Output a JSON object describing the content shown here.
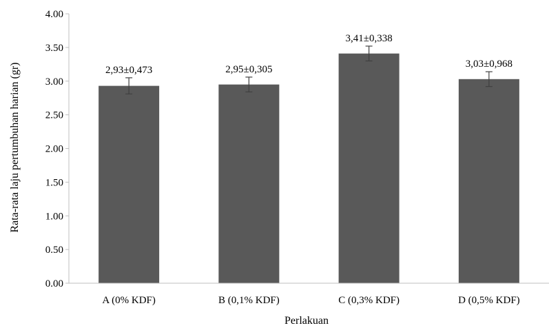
{
  "chart_data": {
    "type": "bar",
    "categories": [
      "A (0% KDF)",
      "B (0,1% KDF)",
      "C (0,3% KDF)",
      "D (0,5% KDF)"
    ],
    "values": [
      2.93,
      2.95,
      3.41,
      3.03
    ],
    "error": [
      0.12,
      0.11,
      0.11,
      0.11
    ],
    "data_labels": [
      "2,93±0,473",
      "2,95±0,305",
      "3,41±0,338",
      "3,03±0,968"
    ],
    "xlabel": "Perlakuan",
    "ylabel": "Rata-rata laju pertumbuhan harian (gr)",
    "ylim": [
      0,
      4
    ],
    "yticks": [
      "0.00",
      "0.50",
      "1.00",
      "1.50",
      "2.00",
      "2.50",
      "3.00",
      "3.50",
      "4.00"
    ],
    "ytick_values": [
      0,
      0.5,
      1,
      1.5,
      2,
      2.5,
      3,
      3.5,
      4
    ],
    "grid": false,
    "bar_color": "#595959",
    "axis_color": "#bfbfbf",
    "errorbar_color": "#404040"
  }
}
